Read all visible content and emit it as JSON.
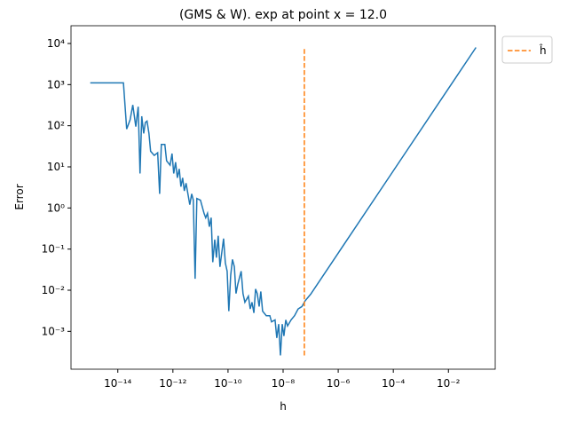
{
  "chart_data": {
    "type": "line",
    "title": "(GMS & W). exp at point x = 12.0",
    "xlabel": "h",
    "ylabel": "Error",
    "xscale": "log",
    "yscale": "log",
    "legend": "outside upper right",
    "xlim": [
      2e-16,
      0.5
    ],
    "ylim": [
      0.00012,
      27000
    ],
    "xticks": [
      {
        "value": 1e-14,
        "label": "10⁻¹⁴"
      },
      {
        "value": 1e-12,
        "label": "10⁻¹²"
      },
      {
        "value": 1e-10,
        "label": "10⁻¹⁰"
      },
      {
        "value": 1e-08,
        "label": "10⁻⁸"
      },
      {
        "value": 1e-06,
        "label": "10⁻⁶"
      },
      {
        "value": 0.0001,
        "label": "10⁻⁴"
      },
      {
        "value": 0.01,
        "label": "10⁻²"
      }
    ],
    "yticks": [
      {
        "value": 0.001,
        "label": "10⁻³"
      },
      {
        "value": 0.01,
        "label": "10⁻²"
      },
      {
        "value": 0.1,
        "label": "10⁻¹"
      },
      {
        "value": 1,
        "label": "10⁰"
      },
      {
        "value": 10,
        "label": "10¹"
      },
      {
        "value": 100,
        "label": "10²"
      },
      {
        "value": 1000,
        "label": "10³"
      },
      {
        "value": 10000,
        "label": "10⁴"
      }
    ],
    "series": [
      {
        "color": "#1f77b4",
        "linestyle": "solid",
        "x": [
          1e-15,
          1.6e-14,
          2.1e-14,
          2.8e-14,
          3.5e-14,
          4.5e-14,
          5.5e-14,
          6.4e-14,
          7.4e-14,
          8.7e-14,
          1e-13,
          1.15e-13,
          1.35e-13,
          1.55e-13,
          2.1e-13,
          2.8e-13,
          3.3e-13,
          3.8e-13,
          5.1e-13,
          5.9e-13,
          7.9e-13,
          9.3e-13,
          1.07e-12,
          1.25e-12,
          1.45e-12,
          1.7e-12,
          1.95e-12,
          2.25e-12,
          2.6e-12,
          3e-12,
          4.1e-12,
          4.8e-12,
          5.5e-12,
          6.4e-12,
          7.4e-12,
          1e-11,
          1.35e-11,
          1.55e-11,
          1.8e-11,
          2.1e-11,
          2.45e-11,
          2.8e-11,
          3.3e-11,
          3.8e-11,
          4.4e-11,
          5.1e-11,
          6.9e-11,
          8e-11,
          9.3e-11,
          1.07e-10,
          1.25e-10,
          1.45e-10,
          1.7e-10,
          1.95e-10,
          2.25e-10,
          3e-10,
          3.5e-10,
          4.1e-10,
          5.5e-10,
          6.4e-10,
          7.4e-10,
          8.7e-10,
          1e-09,
          1.15e-09,
          1.35e-09,
          1.55e-09,
          1.8e-09,
          2.45e-09,
          3.3e-09,
          3.8e-09,
          5.1e-09,
          5.9e-09,
          6.9e-09,
          8e-09,
          9.3e-09,
          1.07e-08,
          1.25e-08,
          1.45e-08,
          1.95e-08,
          2.6e-08,
          3.5e-08,
          4.8e-08,
          6.4e-08,
          1e-07,
          1e-06,
          0.0001,
          0.01,
          0.1
        ],
        "values": [
          1100,
          1100,
          83,
          140,
          320,
          95,
          290,
          6.9,
          170,
          65,
          120,
          130,
          65,
          24,
          19,
          22,
          2.2,
          35,
          35,
          14,
          11,
          21,
          6.9,
          13,
          5.4,
          8.9,
          3.3,
          5.4,
          2.6,
          4.0,
          1.2,
          2.2,
          1.55,
          0.019,
          1.7,
          1.55,
          0.74,
          0.58,
          0.74,
          0.35,
          0.58,
          0.048,
          0.17,
          0.062,
          0.21,
          0.037,
          0.18,
          0.046,
          0.029,
          0.0031,
          0.023,
          0.056,
          0.037,
          0.0083,
          0.0138,
          0.029,
          0.0083,
          0.0051,
          0.0072,
          0.0035,
          0.0051,
          0.0028,
          0.0107,
          0.0083,
          0.004,
          0.0093,
          0.0031,
          0.0024,
          0.0024,
          0.0017,
          0.0019,
          0.00069,
          0.0015,
          0.00026,
          0.0015,
          0.00077,
          0.0019,
          0.00135,
          0.0019,
          0.0024,
          0.0035,
          0.004,
          0.0056,
          0.008,
          0.08,
          8,
          800,
          8000
        ]
      },
      {
        "name": "ĥ",
        "color": "#ff7f0e",
        "linestyle": "dashed",
        "x": [
          5.9e-08,
          5.9e-08
        ],
        "values": [
          0.00026,
          8000
        ]
      }
    ]
  }
}
